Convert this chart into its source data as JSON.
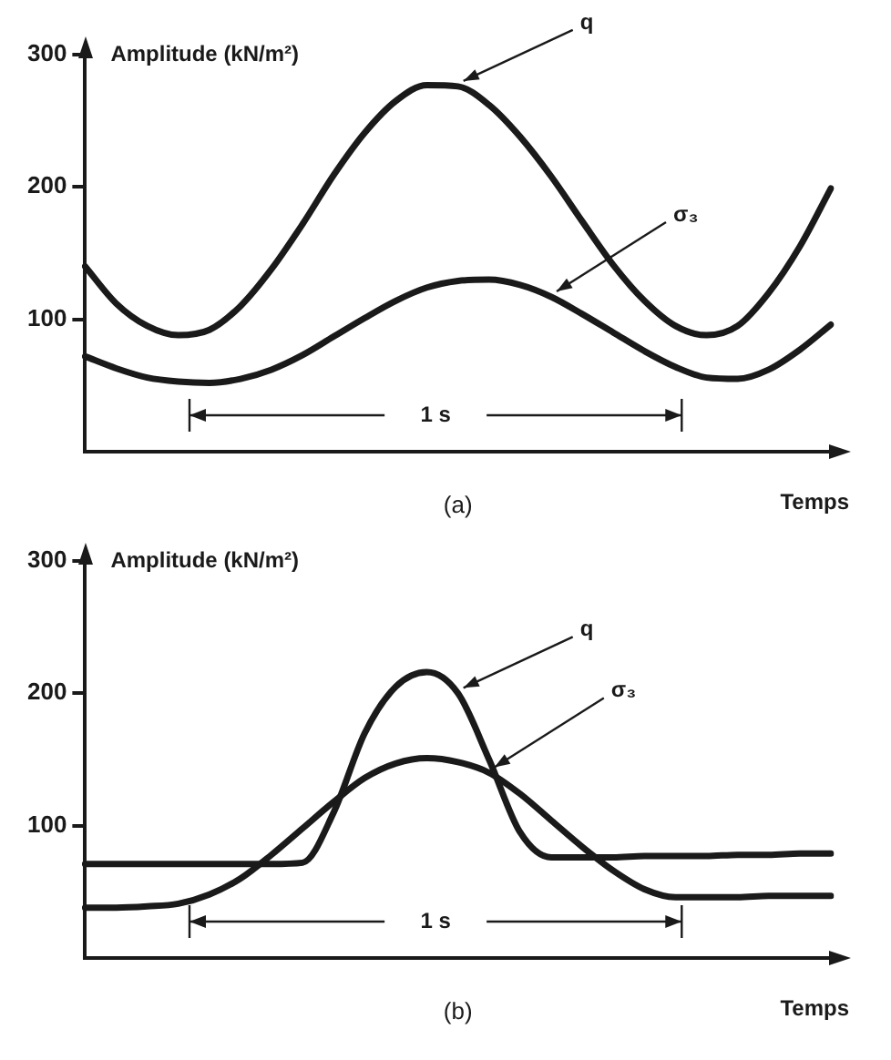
{
  "chart_data": [
    {
      "type": "line",
      "title": "(a)",
      "xlabel": "Temps",
      "ylabel": "Amplitude (kN/m²)",
      "categories": [
        null,
        null,
        null,
        null,
        null,
        null,
        null,
        null,
        null,
        null,
        null,
        null,
        null,
        null,
        null,
        null,
        null,
        null,
        null,
        null,
        null,
        null,
        null,
        null,
        null
      ],
      "series": [
        {
          "name": "q",
          "color": "#1a1a1a",
          "values": [
            140,
            112,
            95,
            88,
            92,
            110,
            138,
            172,
            209,
            241,
            265,
            277,
            276,
            262,
            238,
            208,
            174,
            141,
            114,
            95,
            88,
            95,
            120,
            155,
            199
          ]
        },
        {
          "name": "σ₃",
          "color": "#1a1a1a",
          "values": [
            72,
            63,
            56,
            53,
            52,
            55,
            62,
            73,
            87,
            101,
            114,
            124,
            129,
            130,
            126,
            117,
            104,
            90,
            76,
            64,
            56,
            55,
            62,
            77,
            96
          ]
        }
      ],
      "ylim": [
        0,
        300
      ],
      "yticks": [
        100,
        200,
        300
      ],
      "tick_labels": "y",
      "grid": false,
      "legend": false,
      "marker": "none",
      "line_style": "solid",
      "annotations": [
        "1 s"
      ]
    },
    {
      "type": "line",
      "title": "(b)",
      "xlabel": "Temps",
      "ylabel": "Amplitude (kN/m²)",
      "categories": [
        null,
        null,
        null,
        null,
        null,
        null,
        null,
        null,
        null,
        null,
        null,
        null,
        null,
        null,
        null,
        null,
        null,
        null,
        null,
        null,
        null,
        null,
        null,
        null,
        null
      ],
      "series": [
        {
          "name": "q",
          "color": "#1a1a1a",
          "values": [
            71,
            71,
            71,
            71,
            71,
            71,
            71,
            72,
            110,
            170,
            205,
            216,
            200,
            150,
            95,
            76,
            76,
            76,
            77,
            77,
            77,
            78,
            78,
            79,
            79
          ]
        },
        {
          "name": "σ₃",
          "color": "#1a1a1a",
          "values": [
            38,
            38,
            39,
            41,
            48,
            60,
            78,
            98,
            118,
            136,
            147,
            151,
            148,
            140,
            124,
            104,
            84,
            66,
            52,
            46,
            46,
            46,
            47,
            47,
            47
          ]
        }
      ],
      "ylim": [
        0,
        300
      ],
      "yticks": [
        100,
        200,
        300
      ],
      "tick_labels": "y",
      "grid": false,
      "legend": false,
      "marker": "none",
      "line_style": "solid",
      "annotations": [
        "1 s"
      ]
    }
  ]
}
